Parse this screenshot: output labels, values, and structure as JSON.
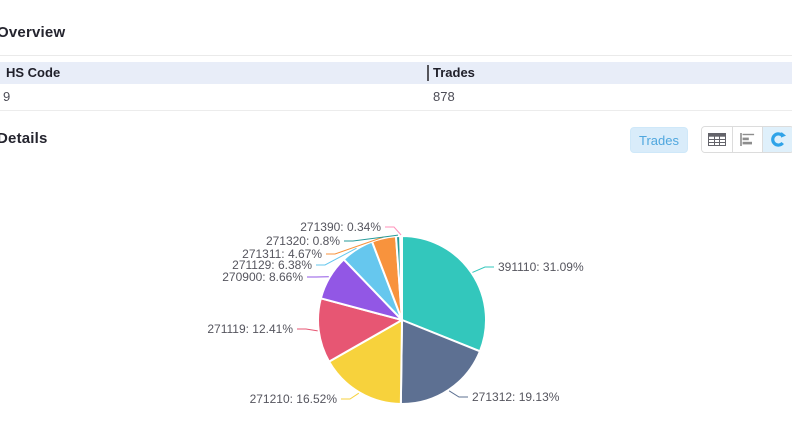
{
  "overview": {
    "title": "Overview",
    "table": {
      "columns": [
        "HS Code",
        "Trades"
      ],
      "rows": [
        [
          "9",
          "878"
        ]
      ]
    }
  },
  "details": {
    "title": "Details",
    "trades_button_label": "Trades",
    "view_buttons": [
      {
        "icon": "table-icon",
        "active": false
      },
      {
        "icon": "bar-chart-icon",
        "active": false
      },
      {
        "icon": "refresh-icon",
        "active": true
      }
    ],
    "accent_color": "#2fa3e8",
    "trades_button_bg": "#d9ecfa",
    "active_view_bg": "#dff0fb"
  },
  "chart_data": {
    "type": "pie",
    "title": "",
    "legend": false,
    "label_template": "{label}:  {pct}%",
    "slices": [
      {
        "label": "391110",
        "pct": 31.09,
        "color": "#33c7bc"
      },
      {
        "label": "271312",
        "pct": 19.13,
        "color": "#5d7092"
      },
      {
        "label": "271210",
        "pct": 16.52,
        "color": "#f7d23c"
      },
      {
        "label": "271119",
        "pct": 12.41,
        "color": "#e75673"
      },
      {
        "label": "270900",
        "pct": 8.66,
        "color": "#9257e5"
      },
      {
        "label": "271129",
        "pct": 6.38,
        "color": "#66c7ee"
      },
      {
        "label": "271311",
        "pct": 4.67,
        "color": "#f8933d"
      },
      {
        "label": "271320",
        "pct": 0.8,
        "color": "#269a99"
      },
      {
        "label": "271390",
        "pct": 0.34,
        "color": "#ff90ba"
      }
    ]
  }
}
